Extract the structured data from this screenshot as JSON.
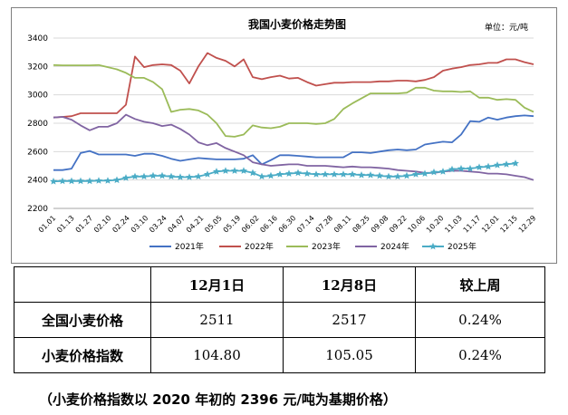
{
  "chart_data": {
    "type": "line",
    "title": "我国小麦价格走势图",
    "unit_label": "单位：元/吨",
    "ylim": [
      2200,
      3400
    ],
    "y_ticks": [
      2200,
      2400,
      2600,
      2800,
      3000,
      3200,
      3400
    ],
    "grid": true,
    "legend_position": "bottom",
    "x_tick_labels": [
      "01.01",
      "01.13",
      "01.27",
      "02.10",
      "02.24",
      "03.10",
      "03.24",
      "04.07",
      "04.21",
      "05.05",
      "05.19",
      "06.02",
      "06.16",
      "06.30",
      "07.14",
      "07.28",
      "08.11",
      "08.25",
      "09.08",
      "09.22",
      "10.06",
      "10.20",
      "11.03",
      "11.17",
      "12.01",
      "12.15",
      "12.29"
    ],
    "series": [
      {
        "name": "2021年",
        "color": "#4472c4",
        "marker": "none",
        "values": [
          2470,
          2470,
          2480,
          2590,
          2605,
          2580,
          2580,
          2580,
          2580,
          2570,
          2585,
          2585,
          2570,
          2550,
          2535,
          2545,
          2555,
          2550,
          2545,
          2545,
          2545,
          2550,
          2575,
          2510,
          2540,
          2575,
          2575,
          2570,
          2565,
          2560,
          2560,
          2560,
          2560,
          2595,
          2595,
          2590,
          2600,
          2610,
          2615,
          2610,
          2615,
          2650,
          2660,
          2670,
          2665,
          2720,
          2815,
          2810,
          2840,
          2825,
          2840,
          2850,
          2855,
          2850
        ]
      },
      {
        "name": "2022年",
        "color": "#c0504d",
        "marker": "none",
        "values": [
          2840,
          2845,
          2850,
          2870,
          2870,
          2870,
          2870,
          2870,
          2930,
          3270,
          3195,
          3210,
          3215,
          3210,
          3170,
          3080,
          3200,
          3295,
          3260,
          3240,
          3200,
          3250,
          3125,
          3110,
          3125,
          3135,
          3115,
          3120,
          3090,
          3065,
          3075,
          3085,
          3085,
          3090,
          3090,
          3090,
          3095,
          3095,
          3100,
          3100,
          3095,
          3105,
          3125,
          3170,
          3185,
          3195,
          3210,
          3215,
          3225,
          3225,
          3250,
          3250,
          3230,
          3215
        ]
      },
      {
        "name": "2023年",
        "color": "#9bbb59",
        "marker": "none",
        "values": [
          3210,
          3208,
          3208,
          3208,
          3208,
          3210,
          3195,
          3180,
          3155,
          3120,
          3120,
          3090,
          3040,
          2880,
          2895,
          2900,
          2890,
          2860,
          2800,
          2710,
          2705,
          2720,
          2785,
          2770,
          2765,
          2775,
          2800,
          2800,
          2800,
          2795,
          2800,
          2830,
          2900,
          2940,
          2975,
          3010,
          3010,
          3010,
          3010,
          3015,
          3050,
          3050,
          3030,
          3025,
          3025,
          3020,
          3025,
          2980,
          2980,
          2965,
          2970,
          2965,
          2910,
          2880
        ]
      },
      {
        "name": "2024年",
        "color": "#8064a2",
        "marker": "none",
        "values": [
          2840,
          2845,
          2825,
          2785,
          2750,
          2775,
          2775,
          2800,
          2860,
          2830,
          2810,
          2800,
          2780,
          2790,
          2760,
          2720,
          2665,
          2645,
          2660,
          2625,
          2600,
          2575,
          2525,
          2510,
          2500,
          2505,
          2510,
          2510,
          2500,
          2500,
          2500,
          2495,
          2490,
          2495,
          2490,
          2490,
          2485,
          2480,
          2470,
          2465,
          2460,
          2450,
          2450,
          2460,
          2465,
          2465,
          2460,
          2455,
          2445,
          2445,
          2440,
          2430,
          2420,
          2400
        ]
      },
      {
        "name": "2025年",
        "color": "#4bacc6",
        "marker": "star",
        "values": [
          2390,
          2392,
          2393,
          2393,
          2393,
          2395,
          2395,
          2400,
          2415,
          2425,
          2425,
          2430,
          2430,
          2425,
          2420,
          2420,
          2425,
          2440,
          2460,
          2465,
          2465,
          2465,
          2450,
          2425,
          2430,
          2440,
          2445,
          2450,
          2445,
          2440,
          2440,
          2440,
          2440,
          2440,
          2435,
          2435,
          2430,
          2425,
          2425,
          2430,
          2440,
          2445,
          2455,
          2460,
          2475,
          2480,
          2480,
          2490,
          2495,
          2505,
          2511,
          2517
        ]
      }
    ]
  },
  "table": {
    "headers": [
      "",
      "12月1日",
      "12月8日",
      "较上周"
    ],
    "rows": [
      {
        "label": "全国小麦价格",
        "values": [
          "2511",
          "2517",
          "0.24%"
        ]
      },
      {
        "label": "小麦价格指数",
        "values": [
          "104.80",
          "105.05",
          "0.24%"
        ]
      }
    ]
  },
  "footnote": "（小麦价格指数以 2020 年初的 2396 元/吨为基期价格）"
}
